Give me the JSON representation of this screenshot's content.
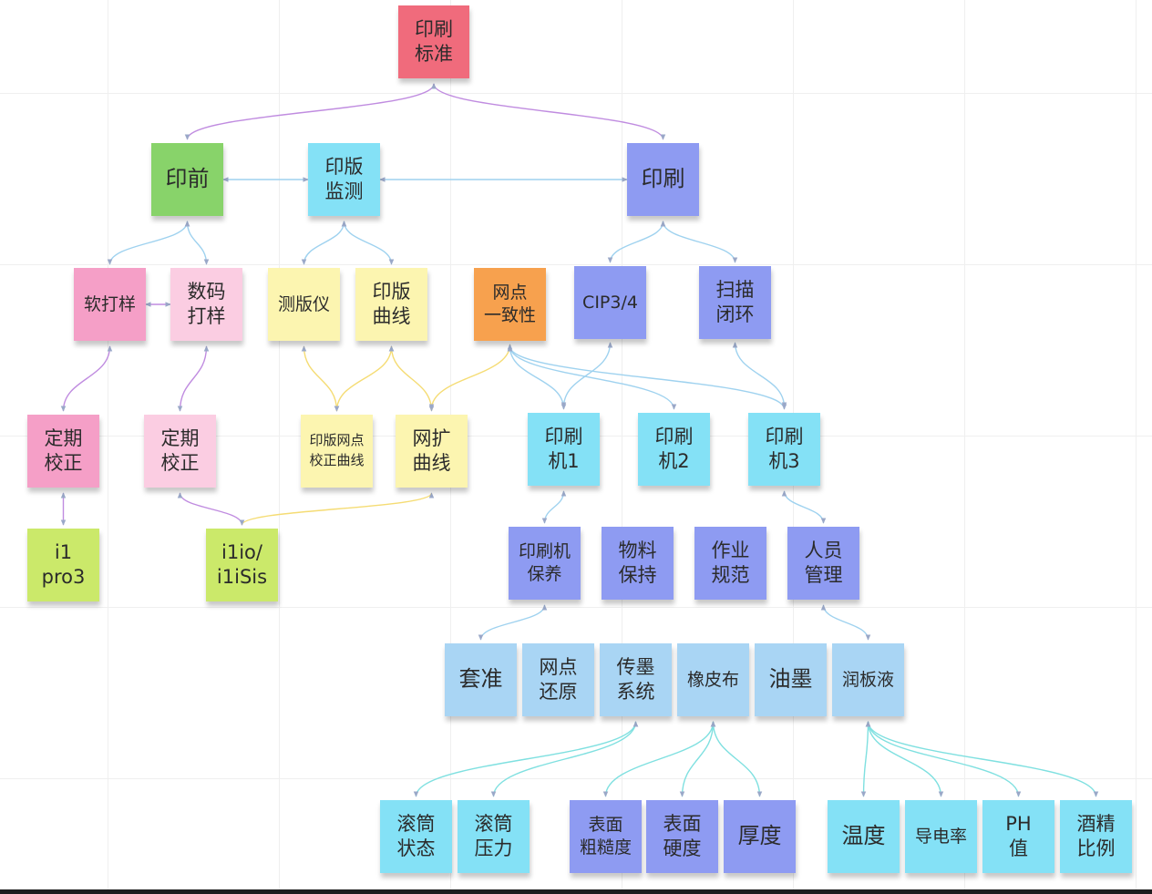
{
  "colors": {
    "red": "#f06b7c",
    "green": "#88d36a",
    "cyan": "#84e1f6",
    "periwinkle": "#8e9bf2",
    "pink": "#f59fc7",
    "light_pink": "#fbcde2",
    "light_yellow": "#fcf5b0",
    "orange": "#f7a14e",
    "lime": "#cbe96a",
    "light_blue": "#a9d5f4",
    "purple_edge": "#c08ce0",
    "yellow_edge": "#f5dc74",
    "blue_edge": "#9fd2ef",
    "teal_edge": "#7fe0e0",
    "green_edge": "#9fe07a"
  },
  "nodes": {
    "print_standard": "印刷\n标准",
    "prepress": "印前",
    "plate_monitor": "印版\n监测",
    "printing": "印刷",
    "soft_proof": "软打样",
    "digital_proof": "数码\n打样",
    "plate_meter": "测版仪",
    "plate_curve": "印版\n曲线",
    "dot_consistency": "网点\n一致性",
    "cip34": "CIP3/4",
    "scan_closed_loop": "扫描\n闭环",
    "calibration_1": "定期\n校正",
    "calibration_2": "定期\n校正",
    "plate_dot_calibration_curve": "印版网点\n校正曲线",
    "dot_gain_curve": "网扩\n曲线",
    "press_1": "印刷\n机1",
    "press_2": "印刷\n机2",
    "press_3": "印刷\n机3",
    "i1pro3": "i1\npro3",
    "i1io_isis": "i1io/\ni1iSis",
    "press_maintenance": "印刷机\n保养",
    "material_keeping": "物料\n保持",
    "work_standard": "作业\n规范",
    "staff_management": "人员\n管理",
    "registration": "套准",
    "dot_reproduction": "网点\n还原",
    "ink_transfer_system": "传墨\n系统",
    "blanket": "橡皮布",
    "ink": "油墨",
    "fountain_solution": "润板液",
    "roller_state": "滚筒\n状态",
    "roller_pressure": "滚筒\n压力",
    "surface_roughness": "表面\n粗糙度",
    "surface_hardness": "表面\n硬度",
    "thickness": "厚度",
    "temperature": "温度",
    "conductivity": "导电率",
    "ph_value": "PH\n值",
    "alcohol_ratio": "酒精\n比例"
  },
  "edges": [
    [
      "print_standard",
      "prepress"
    ],
    [
      "print_standard",
      "printing"
    ],
    [
      "plate_monitor",
      "prepress"
    ],
    [
      "plate_monitor",
      "printing"
    ],
    [
      "prepress",
      "soft_proof"
    ],
    [
      "prepress",
      "digital_proof"
    ],
    [
      "plate_monitor",
      "plate_meter"
    ],
    [
      "plate_monitor",
      "plate_curve"
    ],
    [
      "printing",
      "cip34"
    ],
    [
      "printing",
      "scan_closed_loop"
    ],
    [
      "digital_proof",
      "soft_proof"
    ],
    [
      "soft_proof",
      "calibration_1"
    ],
    [
      "digital_proof",
      "calibration_2"
    ],
    [
      "plate_meter",
      "plate_dot_calibration_curve"
    ],
    [
      "plate_curve",
      "plate_dot_calibration_curve"
    ],
    [
      "plate_curve",
      "dot_gain_curve"
    ],
    [
      "dot_gain_curve",
      "dot_consistency"
    ],
    [
      "dot_consistency",
      "press_1"
    ],
    [
      "dot_consistency",
      "press_2"
    ],
    [
      "dot_consistency",
      "press_3"
    ],
    [
      "press_1",
      "cip34"
    ],
    [
      "press_3",
      "scan_closed_loop"
    ],
    [
      "calibration_1",
      "i1pro3"
    ],
    [
      "calibration_2",
      "i1io_isis"
    ],
    [
      "dot_gain_curve",
      "i1io_isis"
    ],
    [
      "press_1",
      "press_maintenance"
    ],
    [
      "press_3",
      "staff_management"
    ],
    [
      "press_maintenance",
      "registration"
    ],
    [
      "staff_management",
      "fountain_solution"
    ],
    [
      "ink_transfer_system",
      "roller_state"
    ],
    [
      "ink_transfer_system",
      "roller_pressure"
    ],
    [
      "blanket",
      "surface_roughness"
    ],
    [
      "blanket",
      "surface_hardness"
    ],
    [
      "blanket",
      "thickness"
    ],
    [
      "fountain_solution",
      "temperature"
    ],
    [
      "fountain_solution",
      "conductivity"
    ],
    [
      "fountain_solution",
      "ph_value"
    ],
    [
      "fountain_solution",
      "alcohol_ratio"
    ]
  ]
}
